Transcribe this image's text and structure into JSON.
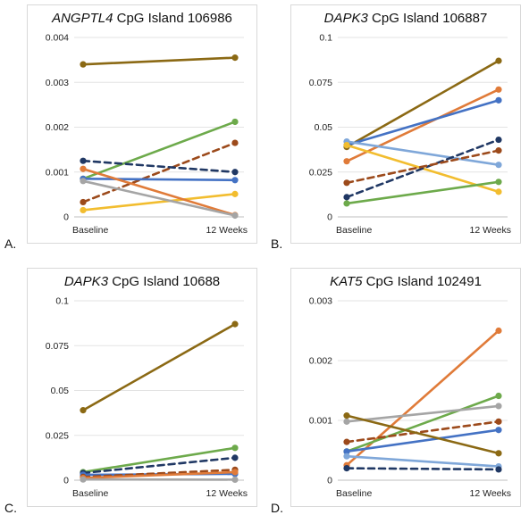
{
  "chart_data": [
    {
      "type": "line",
      "letter": "A.",
      "title_gene": "ANGPTL4",
      "title_rest": " CpG Island 106986",
      "categories": [
        "Baseline",
        "12 Weeks"
      ],
      "ylim": [
        0,
        0.004
      ],
      "yticks": [
        0,
        0.001,
        0.002,
        0.003,
        0.004
      ],
      "yticklabels": [
        "0",
        "0.001",
        "0.002",
        "0.003",
        "0.004"
      ],
      "series": [
        {
          "color": "#8B6914",
          "dashed": false,
          "values": [
            0.0034,
            0.00355
          ]
        },
        {
          "color": "#6DAA4B",
          "dashed": false,
          "values": [
            0.00085,
            0.00212
          ]
        },
        {
          "color": "#9C4A1B",
          "dashed": true,
          "values": [
            0.00033,
            0.00165
          ]
        },
        {
          "color": "#203864",
          "dashed": true,
          "values": [
            0.00125,
            0.001
          ]
        },
        {
          "color": "#4472C4",
          "dashed": false,
          "values": [
            0.00085,
            0.00082
          ]
        },
        {
          "color": "#F2BD2F",
          "dashed": false,
          "values": [
            0.00015,
            0.00051
          ]
        },
        {
          "color": "#E07B39",
          "dashed": false,
          "values": [
            0.00107,
            4e-05
          ]
        },
        {
          "color": "#A5A5A5",
          "dashed": false,
          "values": [
            0.0008,
            3e-05
          ]
        }
      ]
    },
    {
      "type": "line",
      "letter": "B.",
      "title_gene": "DAPK3",
      "title_rest": " CpG Island 106887",
      "categories": [
        "Baseline",
        "12 Weeks"
      ],
      "ylim": [
        0,
        0.1
      ],
      "yticks": [
        0,
        0.025,
        0.05,
        0.075,
        0.1
      ],
      "yticklabels": [
        "0",
        "0.025",
        "0.05",
        "0.075",
        "0.1"
      ],
      "series": [
        {
          "color": "#8B6914",
          "dashed": false,
          "values": [
            0.039,
            0.087
          ]
        },
        {
          "color": "#E07B39",
          "dashed": false,
          "values": [
            0.031,
            0.071
          ]
        },
        {
          "color": "#4472C4",
          "dashed": false,
          "values": [
            0.04,
            0.065
          ]
        },
        {
          "color": "#7FA7D9",
          "dashed": false,
          "values": [
            0.042,
            0.029
          ]
        },
        {
          "color": "#F2BD2F",
          "dashed": false,
          "values": [
            0.04,
            0.014
          ]
        },
        {
          "color": "#203864",
          "dashed": true,
          "values": [
            0.011,
            0.043
          ]
        },
        {
          "color": "#9C4A1B",
          "dashed": true,
          "values": [
            0.019,
            0.037
          ]
        },
        {
          "color": "#6DAA4B",
          "dashed": false,
          "values": [
            0.0075,
            0.0195
          ]
        }
      ]
    },
    {
      "type": "line",
      "letter": "C.",
      "title_gene": "DAPK3",
      "title_rest": " CpG Island 10688",
      "categories": [
        "Baseline",
        "12 Weeks"
      ],
      "ylim": [
        0,
        0.1
      ],
      "yticks": [
        0,
        0.025,
        0.05,
        0.075,
        0.1
      ],
      "yticklabels": [
        "0",
        "0.025",
        "0.05",
        "0.075",
        "0.1"
      ],
      "series": [
        {
          "color": "#8B6914",
          "dashed": false,
          "values": [
            0.039,
            0.087
          ]
        },
        {
          "color": "#6DAA4B",
          "dashed": false,
          "values": [
            0.0045,
            0.018
          ]
        },
        {
          "color": "#203864",
          "dashed": true,
          "values": [
            0.004,
            0.0125
          ]
        },
        {
          "color": "#4472C4",
          "dashed": false,
          "values": [
            0.003,
            0.0035
          ]
        },
        {
          "color": "#9C4A1B",
          "dashed": true,
          "values": [
            0.0018,
            0.0058
          ]
        },
        {
          "color": "#E07B39",
          "dashed": false,
          "values": [
            0.0012,
            0.0045
          ]
        },
        {
          "color": "#A5A5A5",
          "dashed": false,
          "values": [
            0.0004,
            0.0003
          ]
        }
      ]
    },
    {
      "type": "line",
      "letter": "D.",
      "title_gene": "KAT5",
      "title_rest": " CpG Island 102491",
      "categories": [
        "Baseline",
        "12 Weeks"
      ],
      "ylim": [
        0,
        0.003
      ],
      "yticks": [
        0,
        0.001,
        0.002,
        0.003
      ],
      "yticklabels": [
        "0",
        "0.001",
        "0.002",
        "0.003"
      ],
      "series": [
        {
          "color": "#E07B39",
          "dashed": false,
          "values": [
            0.00025,
            0.0025
          ]
        },
        {
          "color": "#6DAA4B",
          "dashed": false,
          "values": [
            0.00048,
            0.00141
          ]
        },
        {
          "color": "#A5A5A5",
          "dashed": false,
          "values": [
            0.00098,
            0.00124
          ]
        },
        {
          "color": "#9C4A1B",
          "dashed": true,
          "values": [
            0.00064,
            0.00098
          ]
        },
        {
          "color": "#4472C4",
          "dashed": false,
          "values": [
            0.00048,
            0.00084
          ]
        },
        {
          "color": "#8B6914",
          "dashed": false,
          "values": [
            0.00108,
            0.00045
          ]
        },
        {
          "color": "#7FA7D9",
          "dashed": false,
          "values": [
            0.0004,
            0.00023
          ]
        },
        {
          "color": "#203864",
          "dashed": true,
          "values": [
            0.0002,
            0.00018
          ]
        }
      ]
    }
  ]
}
